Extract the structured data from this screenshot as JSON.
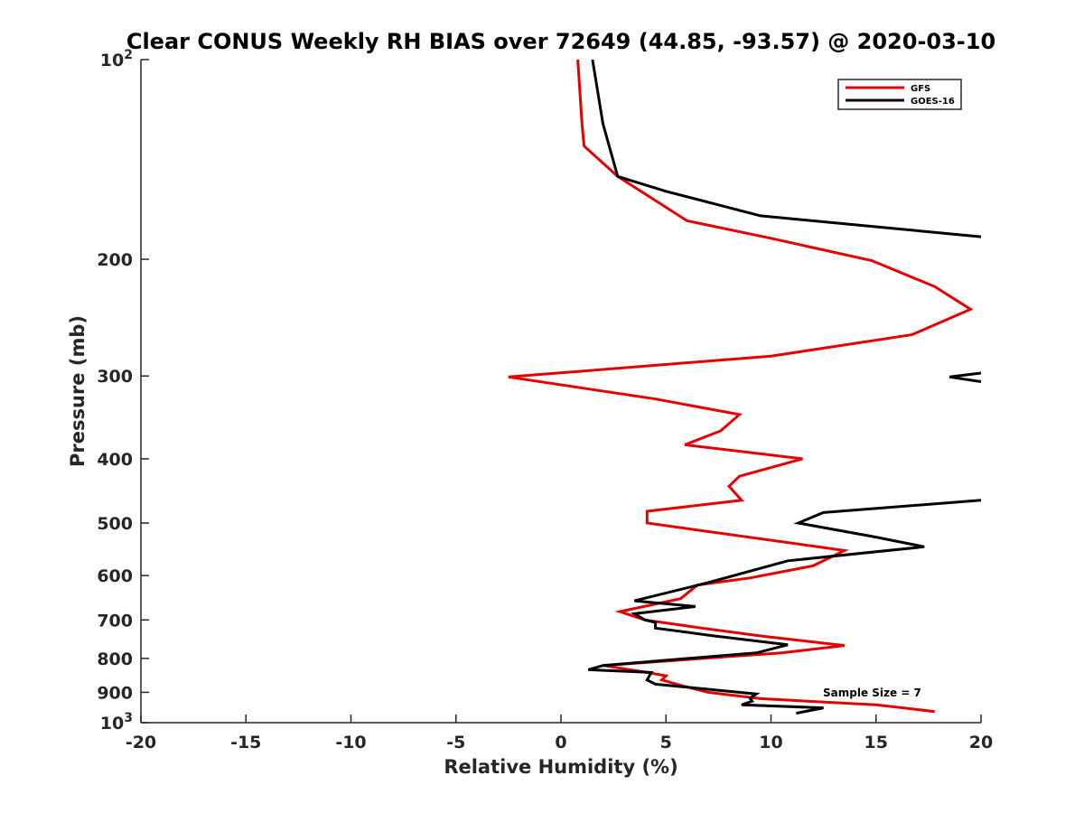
{
  "chart_data": {
    "type": "line",
    "title": "Clear CONUS Weekly RH BIAS over 72649 (44.85, -93.57) @ 2020-03-10",
    "xlabel": "Relative Humidity (%)",
    "ylabel": "Pressure (mb)",
    "xlim": [
      -20,
      20
    ],
    "ylim": [
      100,
      1000
    ],
    "y_scale": "log",
    "y_reversed": true,
    "grid": false,
    "legend_position": "top-right",
    "x_ticks": [
      "-20",
      "-15",
      "-10",
      "-5",
      "0",
      "5",
      "10",
      "15",
      "20"
    ],
    "y_ticks": [
      {
        "value": 100,
        "label": "10",
        "sup": "2"
      },
      {
        "value": 200,
        "label": "200",
        "sup": ""
      },
      {
        "value": 300,
        "label": "300",
        "sup": ""
      },
      {
        "value": 400,
        "label": "400",
        "sup": ""
      },
      {
        "value": 500,
        "label": "500",
        "sup": ""
      },
      {
        "value": 600,
        "label": "600",
        "sup": ""
      },
      {
        "value": 700,
        "label": "700",
        "sup": ""
      },
      {
        "value": 800,
        "label": "800",
        "sup": ""
      },
      {
        "value": 900,
        "label": "900",
        "sup": ""
      },
      {
        "value": 1000,
        "label": "10",
        "sup": "3"
      }
    ],
    "series": [
      {
        "name": "GFS",
        "color": "#e60000",
        "points": [
          [
            0.8,
            100
          ],
          [
            1.0,
            125
          ],
          [
            1.1,
            135
          ],
          [
            2.7,
            150
          ],
          [
            6.0,
            175
          ],
          [
            10.0,
            186
          ],
          [
            14.8,
            201
          ],
          [
            17.8,
            220
          ],
          [
            19.5,
            238
          ],
          [
            16.7,
            260
          ],
          [
            10.0,
            280
          ],
          [
            -2.5,
            301
          ],
          [
            4.5,
            325
          ],
          [
            8.5,
            343
          ],
          [
            7.6,
            363
          ],
          [
            5.9,
            381
          ],
          [
            11.5,
            400
          ],
          [
            8.5,
            425
          ],
          [
            8.0,
            440
          ],
          [
            8.6,
            462
          ],
          [
            4.1,
            480
          ],
          [
            4.1,
            500
          ],
          [
            13.5,
            550
          ],
          [
            12.0,
            580
          ],
          [
            9.0,
            605
          ],
          [
            6.5,
            620
          ],
          [
            5.7,
            650
          ],
          [
            2.8,
            680
          ],
          [
            4.0,
            700
          ],
          [
            6.7,
            720
          ],
          [
            9.5,
            740
          ],
          [
            13.5,
            765
          ],
          [
            10.5,
            785
          ],
          [
            2.0,
            820
          ],
          [
            4.1,
            840
          ],
          [
            5.0,
            850
          ],
          [
            4.8,
            862
          ],
          [
            5.8,
            880
          ],
          [
            7.0,
            900
          ],
          [
            9.5,
            920
          ],
          [
            15.0,
            940
          ],
          [
            17.8,
            962
          ]
        ]
      },
      {
        "name": "GOES-16",
        "color": "#000000",
        "points": [
          [
            1.5,
            100
          ],
          [
            2.0,
            125
          ],
          [
            2.7,
            150
          ],
          [
            5.0,
            158
          ],
          [
            9.5,
            172
          ],
          [
            20.0,
            185
          ]
        ]
      },
      {
        "name": "GOES-16",
        "color": "#000000",
        "points": [
          [
            20.0,
            297
          ],
          [
            18.5,
            301
          ],
          [
            20.0,
            306
          ]
        ]
      },
      {
        "name": "GOES-16",
        "color": "#000000",
        "points": [
          [
            20.0,
            462
          ],
          [
            12.5,
            482
          ],
          [
            11.3,
            500
          ],
          [
            15.0,
            525
          ],
          [
            17.3,
            543
          ],
          [
            10.8,
            570
          ],
          [
            7.0,
            615
          ],
          [
            3.5,
            655
          ],
          [
            6.4,
            668
          ],
          [
            3.5,
            685
          ],
          [
            4.0,
            700
          ],
          [
            4.5,
            706
          ],
          [
            4.5,
            720
          ],
          [
            7.3,
            740
          ],
          [
            10.8,
            763
          ],
          [
            9.3,
            785
          ],
          [
            5.0,
            805
          ],
          [
            2.0,
            820
          ],
          [
            1.3,
            832
          ],
          [
            4.3,
            840
          ],
          [
            4.1,
            862
          ],
          [
            4.5,
            875
          ],
          [
            9.3,
            905
          ],
          [
            9.0,
            918
          ],
          [
            9.1,
            928
          ],
          [
            8.6,
            940
          ],
          [
            12.5,
            950
          ],
          [
            11.2,
            968
          ]
        ]
      }
    ],
    "legend": [
      {
        "name": "GFS",
        "color": "#e60000"
      },
      {
        "name": "GOES-16",
        "color": "#000000"
      }
    ],
    "annotations": [
      {
        "text": "Sample Size = 7"
      }
    ]
  }
}
